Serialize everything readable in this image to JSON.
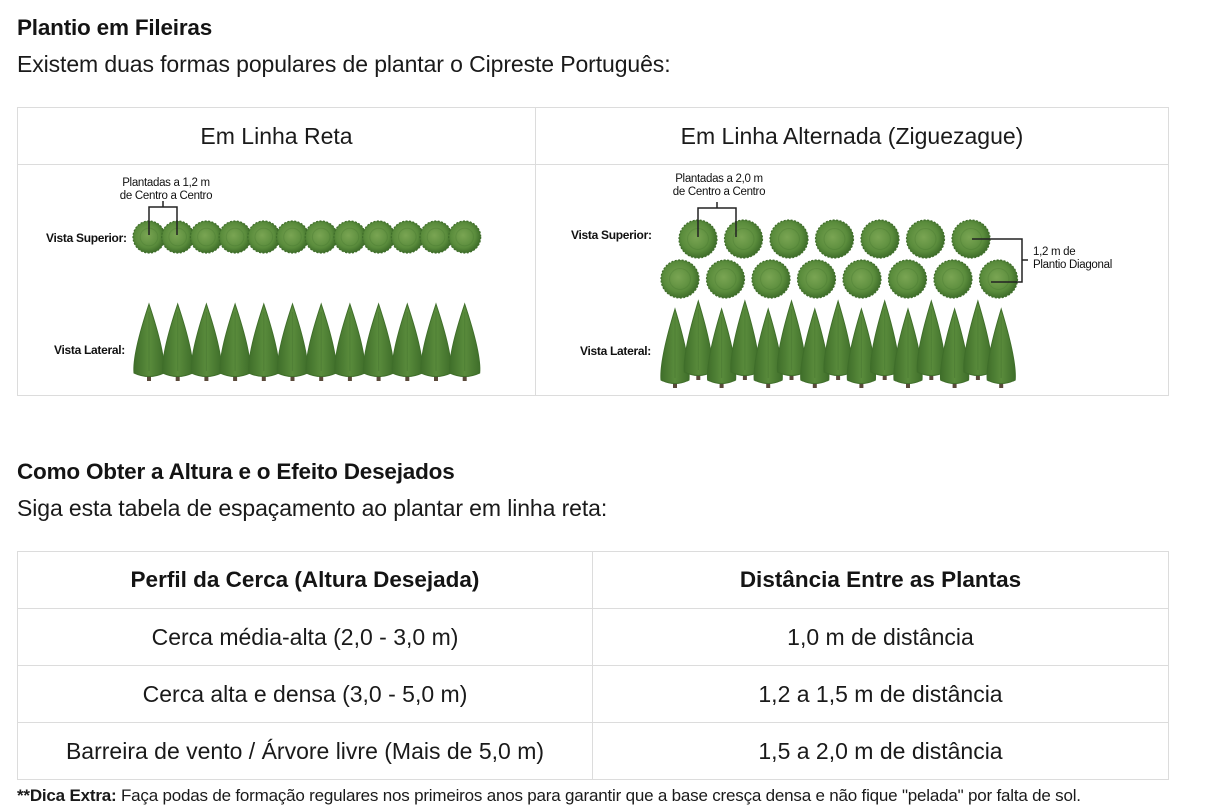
{
  "section1": {
    "heading": "Plantio em Fileiras",
    "intro": "Existem duas formas populares de plantar o Cipreste Português:"
  },
  "planting_table": {
    "columns": [
      {
        "title": "Em Linha Reta",
        "spacing_annotation_line1": "Plantadas a 1,2 m",
        "spacing_annotation_line2": "de Centro a Centro",
        "top_view_label": "Vista Superior:",
        "side_view_label": "Vista Lateral:",
        "top_view_count": 12,
        "side_view_count": 12
      },
      {
        "title": "Em Linha Alternada (Ziguezague)",
        "spacing_annotation_line1": "Plantadas a 2,0 m",
        "spacing_annotation_line2": "de Centro a Centro",
        "diagonal_annotation_line1": "1,2 m de",
        "diagonal_annotation_line2": "Plantio Diagonal",
        "top_view_label": "Vista Superior:",
        "side_view_label": "Vista Lateral:",
        "top_row_count": 7,
        "bottom_row_count": 8,
        "side_view_count": 15
      }
    ]
  },
  "section2": {
    "heading": "Como Obter a Altura e o Efeito Desejados",
    "intro": "Siga esta tabela de espaçamento ao plantar em linha reta:"
  },
  "spacing_table": {
    "headers": [
      "Perfil da Cerca (Altura Desejada)",
      "Distância Entre as Plantas"
    ],
    "rows": [
      [
        "Cerca média-alta (2,0 - 3,0 m)",
        "1,0 m de distância"
      ],
      [
        "Cerca alta e densa (3,0 - 5,0 m)",
        "1,2 a 1,5 m de distância"
      ],
      [
        "Barreira de vento / Árvore livre (Mais de 5,0 m)",
        "1,5 a 2,0 m de distância"
      ]
    ]
  },
  "footnote": {
    "label": "**Dica Extra:",
    "text": " Faça podas de formação regulares nos primeiros anos para garantir que a base cresça densa e não fique \"pelada\" por falta de sol."
  },
  "colors": {
    "foliage_dark": "#3f6e2a",
    "foliage_mid": "#5a8c3c",
    "foliage_light": "#7aa553",
    "trunk": "#5a4a3a",
    "border": "#dcdcdc",
    "text": "#141414"
  }
}
